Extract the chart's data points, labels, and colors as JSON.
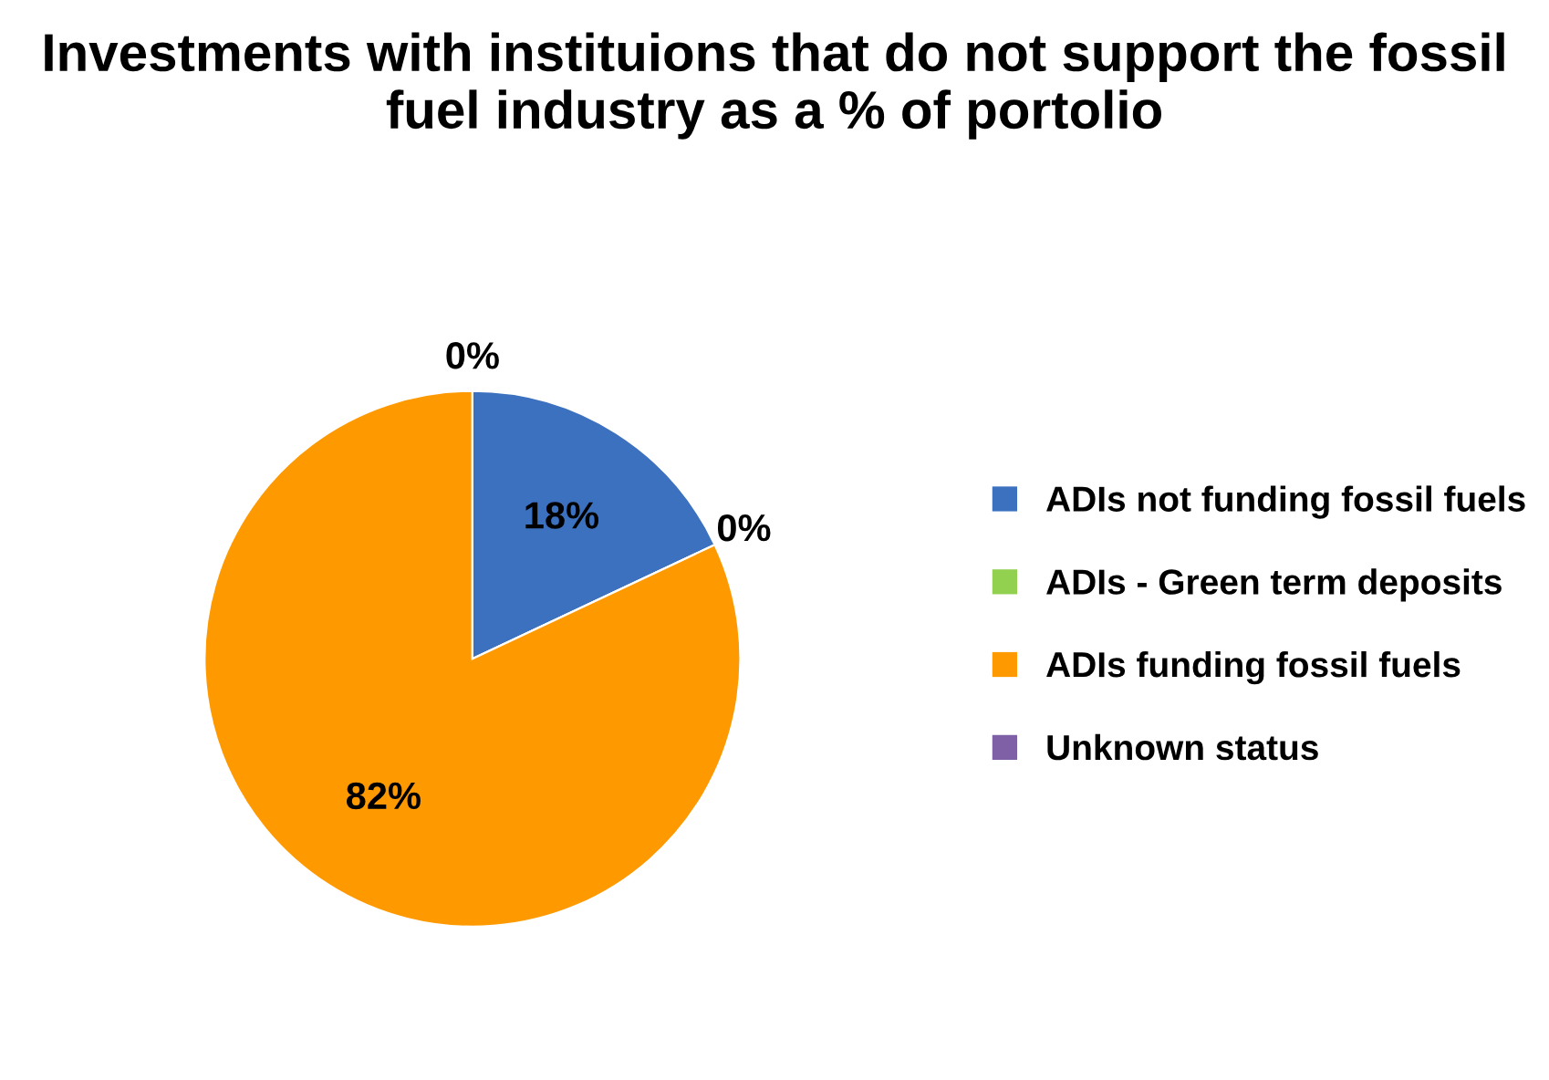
{
  "chart_data": {
    "type": "pie",
    "title": "Investments with instituions that do not support the fossil fuel industry as a % of portolio",
    "categories": [
      "ADIs not funding fossil fuels",
      "ADIs - Green term deposits",
      "ADIs funding fossil fuels",
      "Unknown status"
    ],
    "values": [
      18,
      0,
      82,
      0
    ],
    "colors": [
      "#3c71bf",
      "#92d050",
      "#ff9900",
      "#7f5fa5"
    ],
    "value_labels": [
      "18%",
      "0%",
      "82%",
      "0%"
    ],
    "legend": "right"
  }
}
